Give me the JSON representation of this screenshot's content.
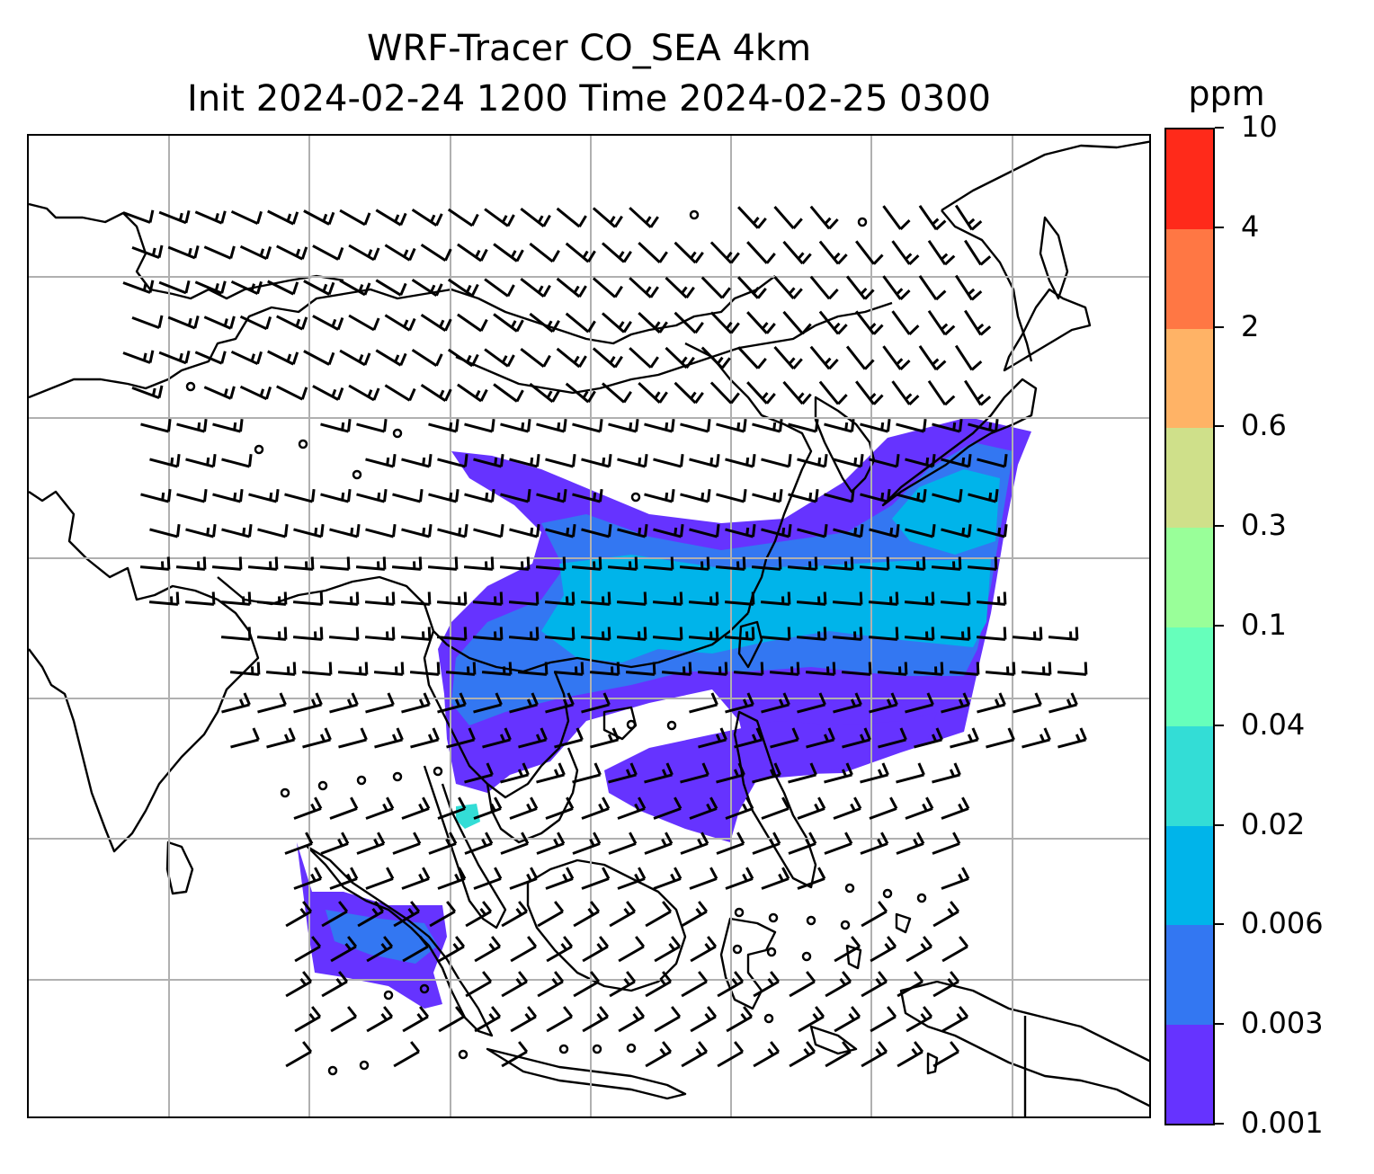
{
  "title": {
    "line1": "WRF-Tracer CO_SEA 4km",
    "line2": "Init 2024-02-24 1200 Time 2024-02-25 0300"
  },
  "colorbar": {
    "unit": "ppm",
    "levels": [
      "0.001",
      "0.003",
      "0.006",
      "0.02",
      "0.04",
      "0.1",
      "0.3",
      "0.6",
      "2",
      "4",
      "10"
    ],
    "colors": [
      "#6633ff",
      "#3377f2",
      "#00b4ea",
      "#33ddd6",
      "#66ffbb",
      "#99ff99",
      "#cfe08a",
      "#ffb366",
      "#ff7744",
      "#ff2a1a"
    ]
  },
  "map": {
    "grid": true,
    "grid_color": "#b0b0b0",
    "coastline_color": "#000000",
    "barb_color": "#000000",
    "field_colors": {
      "lowest": "#6633ff",
      "low": "#3377f2",
      "mid": "#00b4ea",
      "patch": "#33ddd6"
    }
  }
}
